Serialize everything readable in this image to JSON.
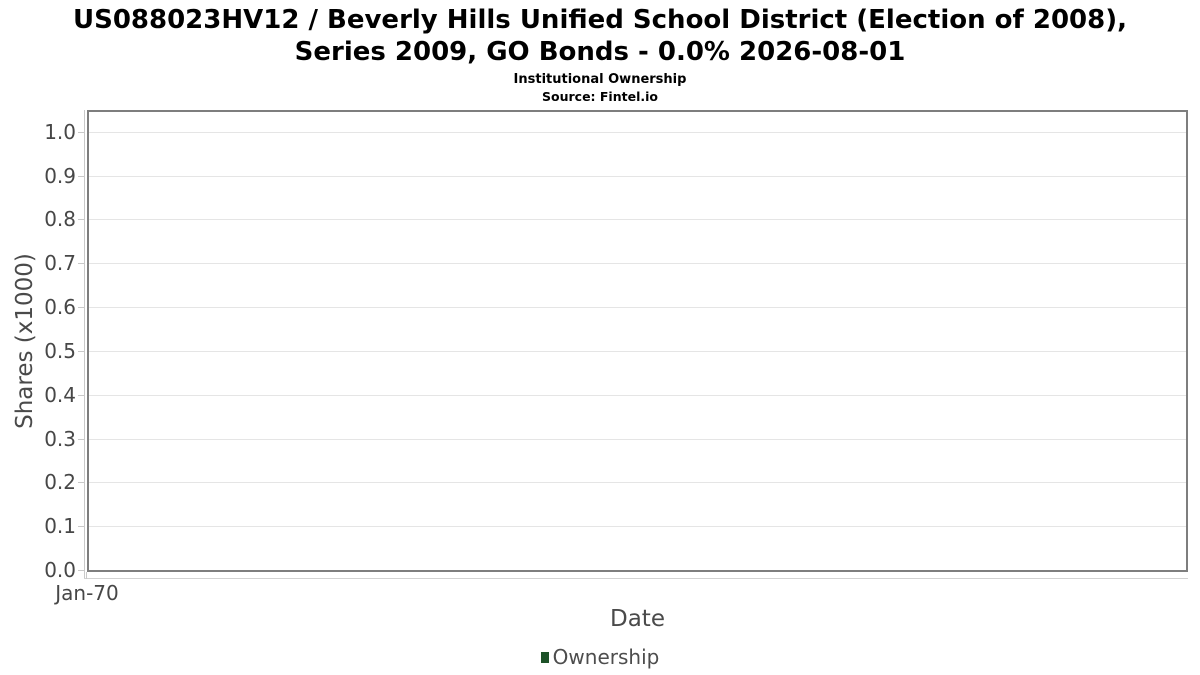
{
  "chart_data": {
    "type": "line",
    "title": "US088023HV12 / Beverly Hills Unified School District (Election of 2008), Series 2009, GO Bonds - 0.0% 2026-08-01",
    "subtitle": "Institutional Ownership",
    "source": "Source: Fintel.io",
    "xlabel": "Date",
    "ylabel": "Shares (x1000)",
    "ylim": [
      0,
      1.045
    ],
    "yticks": [
      0.0,
      0.1,
      0.2,
      0.3,
      0.4,
      0.5,
      0.6,
      0.7,
      0.8,
      0.9,
      1.0
    ],
    "xticks": [
      "Jan-70"
    ],
    "grid": true,
    "legend_position": "bottom",
    "series": [
      {
        "name": "Ownership",
        "color": "#1d5228",
        "x": [],
        "values": []
      }
    ],
    "colors": {
      "plot_border": "#7e7e7e",
      "gridline": "#e5e5e5",
      "axis_line": "#c9c9c9",
      "axis_text": "#474747",
      "title_text": "#000000"
    }
  }
}
